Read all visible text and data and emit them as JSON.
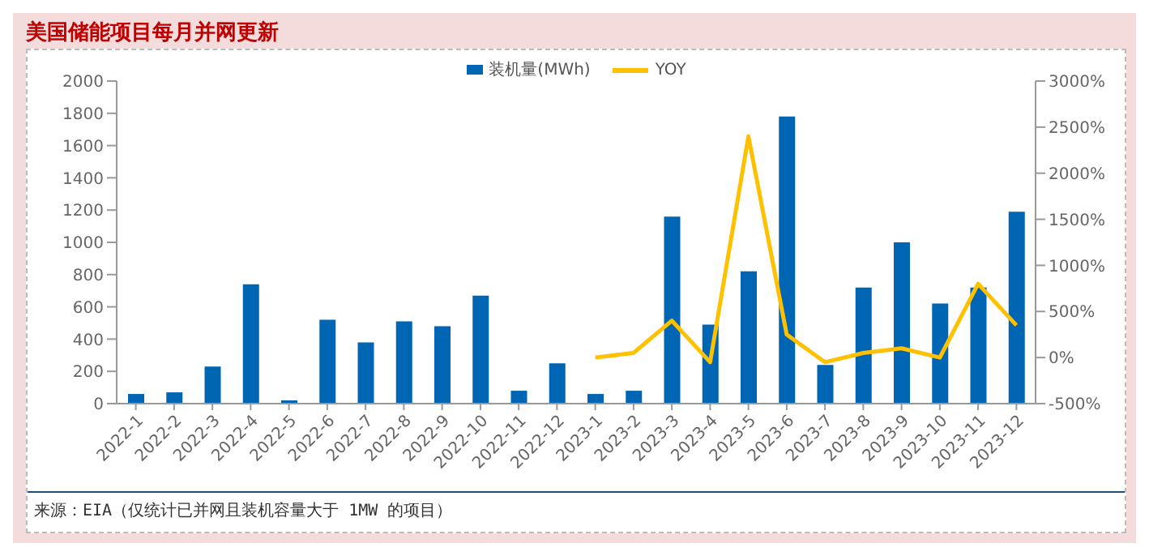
{
  "chart_data": {
    "type": "bar",
    "title": "美国储能项目每月并网更新",
    "categories": [
      "2022-1",
      "2022-2",
      "2022-3",
      "2022-4",
      "2022-5",
      "2022-6",
      "2022-7",
      "2022-8",
      "2022-9",
      "2022-10",
      "2022-11",
      "2022-12",
      "2023-1",
      "2023-2",
      "2023-3",
      "2023-4",
      "2023-5",
      "2023-6",
      "2023-7",
      "2023-8",
      "2023-9",
      "2023-10",
      "2023-11",
      "2023-12"
    ],
    "series": [
      {
        "name": "装机量(MWh)",
        "color": "#0066b3",
        "values": [
          60,
          70,
          230,
          740,
          20,
          520,
          380,
          510,
          480,
          670,
          80,
          250,
          60,
          80,
          1160,
          490,
          820,
          1780,
          240,
          720,
          1000,
          620,
          720,
          1190
        ]
      },
      {
        "name": "YOY",
        "type": "line",
        "axis": "y2",
        "color": "#ffc000",
        "values": [
          null,
          null,
          null,
          null,
          null,
          null,
          null,
          null,
          null,
          null,
          null,
          null,
          0,
          50,
          400,
          -50,
          2400,
          250,
          -50,
          50,
          100,
          0,
          800,
          350
        ]
      }
    ],
    "ylim": [
      0,
      2000
    ],
    "yticks": [
      0,
      200,
      400,
      600,
      800,
      1000,
      1200,
      1400,
      1600,
      1800,
      2000
    ],
    "y2lim": [
      -500,
      3000
    ],
    "y2ticks": [
      {
        "value": -500,
        "label": "-500%"
      },
      {
        "value": 0,
        "label": "0%"
      },
      {
        "value": 500,
        "label": "500%"
      },
      {
        "value": 1000,
        "label": "1000%"
      },
      {
        "value": 1500,
        "label": "1500%"
      },
      {
        "value": 2000,
        "label": "2000%"
      },
      {
        "value": 2500,
        "label": "2500%"
      },
      {
        "value": 3000,
        "label": "3000%"
      }
    ],
    "grid": false,
    "legend": "top",
    "marker": "none",
    "annotations": [
      "来源：EIA（仅统计已并网且装机容量大于 1MW 的项目）"
    ]
  }
}
